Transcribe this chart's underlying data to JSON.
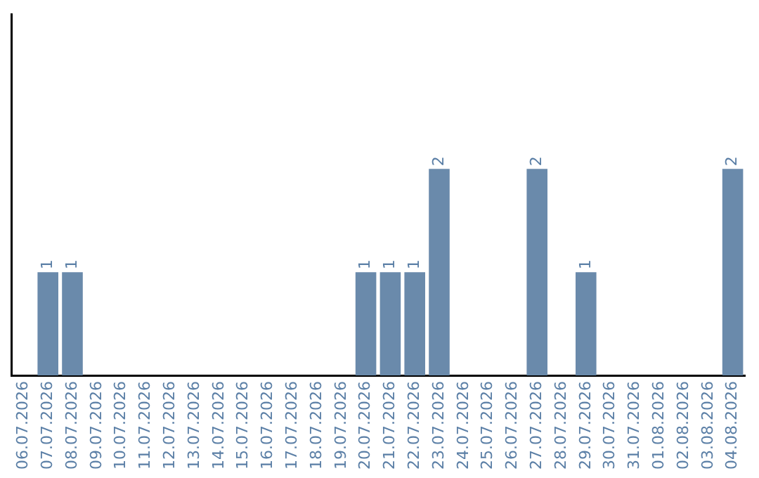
{
  "chart_data": {
    "type": "bar",
    "categories": [
      "06.07.2026",
      "07.07.2026",
      "08.07.2026",
      "09.07.2026",
      "10.07.2026",
      "11.07.2026",
      "12.07.2026",
      "13.07.2026",
      "14.07.2026",
      "15.07.2026",
      "16.07.2026",
      "17.07.2026",
      "18.07.2026",
      "19.07.2026",
      "20.07.2026",
      "21.07.2026",
      "22.07.2026",
      "23.07.2026",
      "24.07.2026",
      "25.07.2026",
      "26.07.2026",
      "27.07.2026",
      "28.07.2026",
      "29.07.2026",
      "30.07.2026",
      "31.07.2026",
      "01.08.2026",
      "02.08.2026",
      "03.08.2026",
      "04.08.2026"
    ],
    "values": [
      0,
      1,
      1,
      0,
      0,
      0,
      0,
      0,
      0,
      0,
      0,
      0,
      0,
      0,
      1,
      1,
      1,
      2,
      0,
      0,
      0,
      2,
      0,
      1,
      0,
      0,
      0,
      0,
      0,
      2
    ],
    "value_labels": [
      null,
      "1",
      "1",
      null,
      null,
      null,
      null,
      null,
      null,
      null,
      null,
      null,
      null,
      null,
      "1",
      "1",
      "1",
      "2",
      null,
      null,
      null,
      "2",
      null,
      "1",
      null,
      null,
      null,
      null,
      null,
      "2"
    ],
    "color": "#6a8aab",
    "tick_labels": "x",
    "grid": false,
    "legend": false
  }
}
